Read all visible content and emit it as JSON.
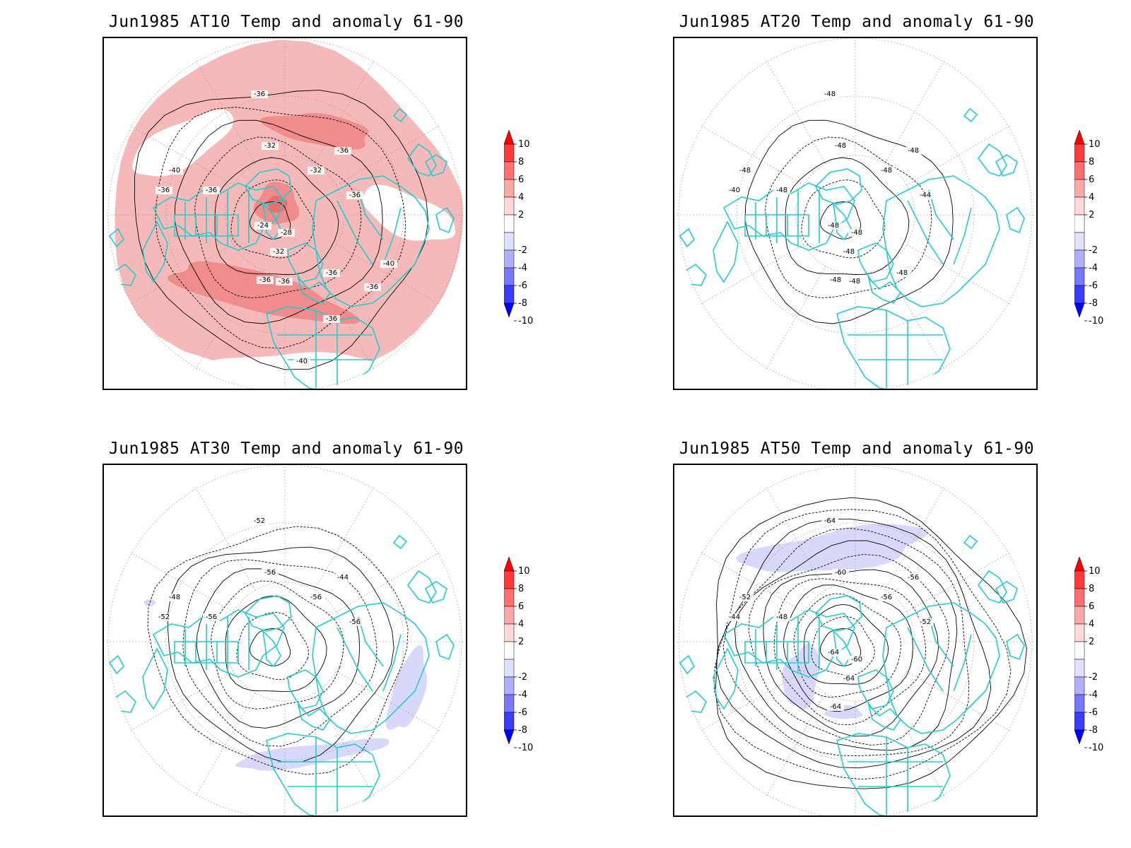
{
  "panels": [
    {
      "title": "Jun1985 AT10 Temp and anomaly 61-90",
      "level": "AT10",
      "anomaly_sign": "positive",
      "contour_labels": [
        "-36",
        "-32",
        "-36",
        "-40",
        "-36",
        "-36",
        "-36",
        "-32",
        "-28",
        "-24",
        "-32",
        "-36",
        "-36",
        "-36",
        "-40",
        "-36",
        "-36",
        "-40"
      ]
    },
    {
      "title": "Jun1985 AT20 Temp and anomaly 61-90",
      "level": "AT20",
      "anomaly_sign": "none",
      "contour_labels": [
        "-48",
        "-48",
        "-48",
        "-48",
        "-40",
        "-48",
        "-44",
        "-48",
        "-48",
        "-48",
        "-48",
        "-48",
        "-48",
        "-48"
      ]
    },
    {
      "title": "Jun1985 AT30 Temp and anomaly 61-90",
      "level": "AT30",
      "anomaly_sign": "negative",
      "contour_labels": [
        "-52",
        "-56",
        "-44",
        "-48",
        "-52",
        "-56",
        "-56",
        "-56"
      ]
    },
    {
      "title": "Jun1985 AT50 Temp and anomaly 61-90",
      "level": "AT50",
      "anomaly_sign": "negative",
      "contour_labels": [
        "-64",
        "-60",
        "-56",
        "-52",
        "-44",
        "-48",
        "-52",
        "-56",
        "-60",
        "-64",
        "-64",
        "-64"
      ]
    }
  ],
  "colorbar": {
    "labels": [
      "10",
      "8",
      "6",
      "4",
      "2",
      "-2",
      "-4",
      "-6",
      "-8",
      "-10"
    ],
    "colors": [
      "#ff0000",
      "#ff3a3a",
      "#ff7070",
      "#ffa8a8",
      "#ffd9d9",
      "#ffffff",
      "#e0e0ff",
      "#b0b0ff",
      "#7878ff",
      "#3c3cff",
      "#0000ff"
    ]
  },
  "style": {
    "coast_color": "#1fcfcf",
    "warm_anomaly": "#f6b9b9",
    "warm_anomaly_strong": "#f08c8c",
    "cool_anomaly": "#d8d8fa"
  }
}
